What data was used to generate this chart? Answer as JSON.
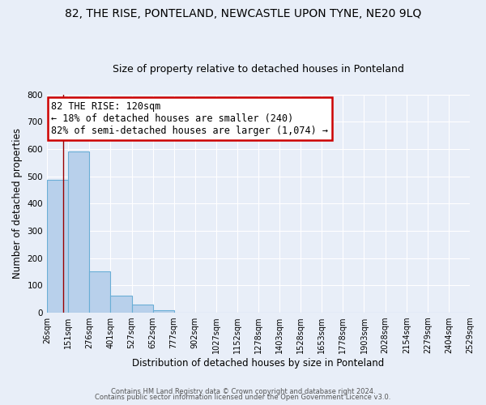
{
  "title": "82, THE RISE, PONTELAND, NEWCASTLE UPON TYNE, NE20 9LQ",
  "subtitle": "Size of property relative to detached houses in Ponteland",
  "xlabel": "Distribution of detached houses by size in Ponteland",
  "ylabel": "Number of detached properties",
  "bar_edges": [
    26,
    151,
    276,
    401,
    527,
    652,
    777,
    902,
    1027,
    1152,
    1278,
    1403,
    1528,
    1653,
    1778,
    1903,
    2028,
    2154,
    2279,
    2404,
    2529
  ],
  "bar_heights": [
    488,
    590,
    150,
    63,
    30,
    8,
    0,
    0,
    0,
    0,
    0,
    0,
    0,
    0,
    0,
    0,
    0,
    0,
    0,
    0
  ],
  "bar_color": "#b8d0eb",
  "bar_edge_color": "#6aaed6",
  "background_color": "#e8eef8",
  "grid_color": "#ffffff",
  "property_line_x": 120,
  "property_line_color": "#990000",
  "ylim": [
    0,
    800
  ],
  "yticks": [
    0,
    100,
    200,
    300,
    400,
    500,
    600,
    700,
    800
  ],
  "annotation_title": "82 THE RISE: 120sqm",
  "annotation_line1": "← 18% of detached houses are smaller (240)",
  "annotation_line2": "82% of semi-detached houses are larger (1,074) →",
  "annotation_box_color": "#ffffff",
  "annotation_box_edge": "#cc0000",
  "footer_line1": "Contains HM Land Registry data © Crown copyright and database right 2024.",
  "footer_line2": "Contains public sector information licensed under the Open Government Licence v3.0.",
  "title_fontsize": 10,
  "subtitle_fontsize": 9,
  "axis_label_fontsize": 8.5,
  "tick_fontsize": 7.5,
  "annotation_fontsize": 8.5
}
